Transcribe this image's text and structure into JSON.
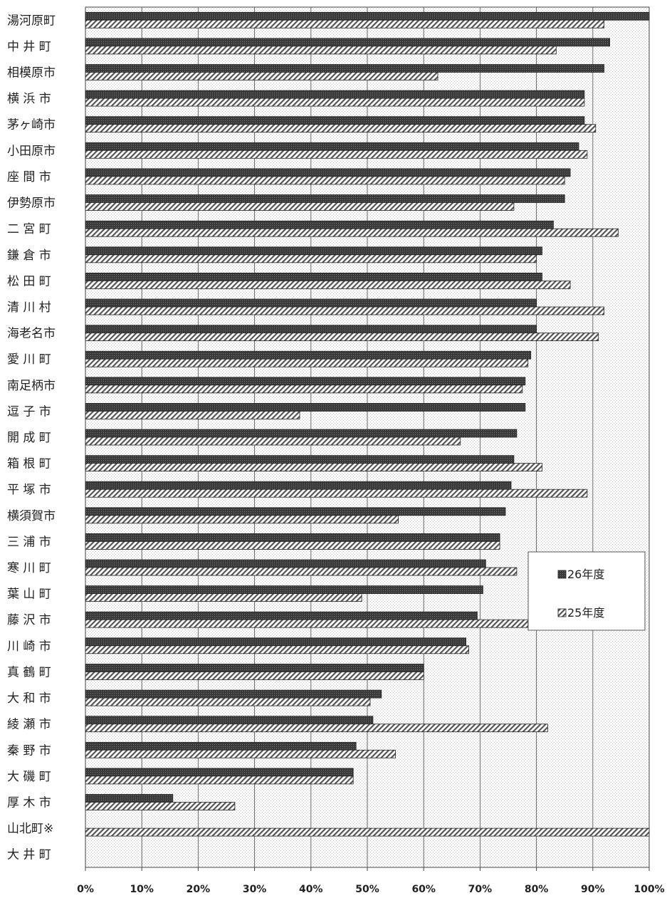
{
  "chart_data": {
    "type": "bar",
    "orientation": "horizontal",
    "categories": [
      "湯河原町",
      "中 井 町",
      "相模原市",
      "横 浜 市",
      "茅ヶ崎市",
      "小田原市",
      "座 間 市",
      "伊勢原市",
      "二 宮 町",
      "鎌 倉 市",
      "松 田 町",
      "清 川 村",
      "海老名市",
      "愛 川 町",
      "南足柄市",
      "逗 子 市",
      "開 成 町",
      "箱 根 町",
      "平 塚 市",
      "横須賀市",
      "三 浦 市",
      "寒 川 町",
      "葉 山 町",
      "藤 沢 市",
      "川 崎 市",
      "真 鶴 町",
      "大 和 市",
      "綾 瀬 市",
      "秦 野 市",
      "大 磯 町",
      "厚 木 市",
      "山北町※",
      "大 井 町"
    ],
    "series": [
      {
        "name": "26年度",
        "color": "#333333",
        "pattern": "solid-dark",
        "values": [
          100,
          93,
          92,
          88.5,
          88.5,
          87.5,
          86,
          85,
          83,
          81,
          81,
          80,
          80,
          79,
          78,
          78,
          76.5,
          76,
          75.5,
          74.5,
          73.5,
          71,
          70.5,
          69.5,
          67.5,
          60,
          52.5,
          51,
          48,
          47.5,
          15.5,
          0,
          0
        ]
      },
      {
        "name": "25年度",
        "color": "#888888",
        "pattern": "diagonal-hatch",
        "values": [
          92,
          83.5,
          62.5,
          88.5,
          90.5,
          89,
          85,
          76,
          94.5,
          80,
          86,
          92,
          91,
          78.5,
          77.5,
          38,
          66.5,
          81,
          89,
          55.5,
          73.5,
          76.5,
          49,
          78.5,
          68,
          60,
          50.5,
          82,
          55,
          47.5,
          26.5,
          100,
          0
        ]
      }
    ],
    "xlim": [
      0,
      100
    ],
    "x_ticks": [
      "0%",
      "10%",
      "20%",
      "30%",
      "40%",
      "50%",
      "60%",
      "70%",
      "80%",
      "90%",
      "100%"
    ],
    "grid": true,
    "legend_position": "right-middle"
  }
}
